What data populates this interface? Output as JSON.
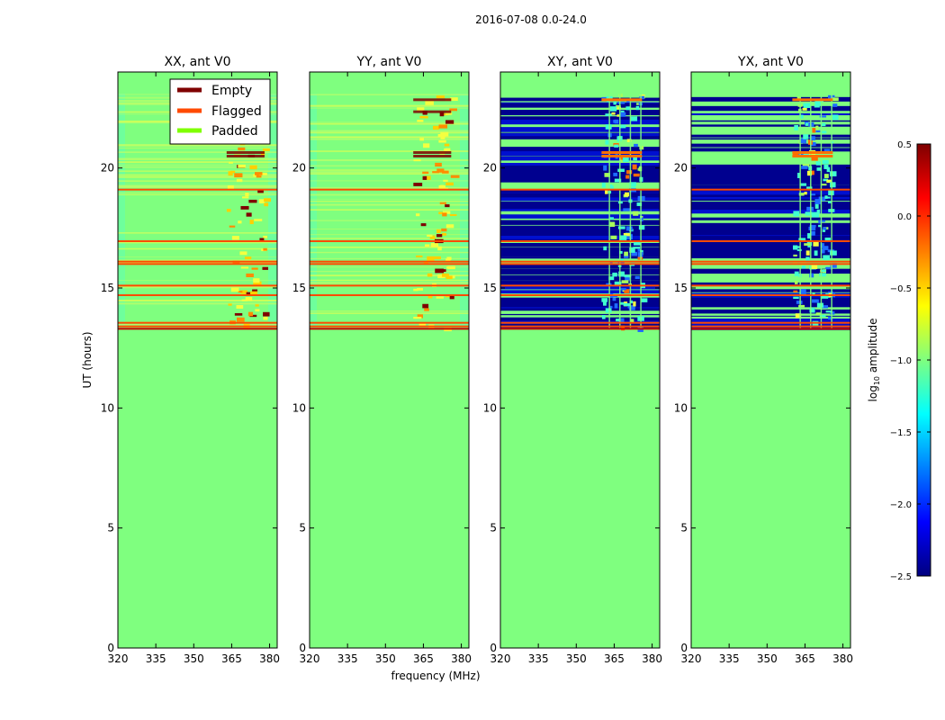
{
  "figure_title": "2016-07-08 0.0-24.0",
  "colors": {
    "padded": "#7fff7f",
    "flagged": "#ff4a00",
    "empty": "#7f0000",
    "xx_yy_texture": "#5dffa0",
    "cross_pol_dark": "#00008f",
    "cross_pol_mid": "#1e6cff",
    "cyan": "#40ffd0",
    "yellow": "#f4ff40"
  },
  "legend": {
    "entries": [
      {
        "label": "Empty",
        "color": "#7f0000"
      },
      {
        "label": "Flagged",
        "color": "#ff4a00"
      },
      {
        "label": "Padded",
        "color": "#7fff00"
      }
    ],
    "placement": "top-right of first panel"
  },
  "chart_data": [
    {
      "type": "heatmap",
      "title": "XX, ant V0",
      "xlabel": "",
      "ylabel": "UT (hours)",
      "x_ticks": [
        "320",
        "335",
        "350",
        "365",
        "380"
      ],
      "y_ticks": [
        "0",
        "5",
        "10",
        "15",
        "20"
      ],
      "xlim": [
        320,
        383
      ],
      "ylim": [
        0,
        24
      ],
      "data_start_hour": 13.3,
      "style": "parallel",
      "flag_lines_hours": [
        13.4,
        13.55,
        14.7,
        15.1,
        16.0,
        16.1,
        16.95,
        19.1
      ],
      "hot_band_mhz": [
        363,
        378
      ]
    },
    {
      "type": "heatmap",
      "title": "YY, ant V0",
      "xlabel": "frequency (MHz)",
      "ylabel": "",
      "x_ticks": [
        "320",
        "335",
        "350",
        "365",
        "380"
      ],
      "y_ticks": [
        "0",
        "5",
        "10",
        "15",
        "20"
      ],
      "xlim": [
        320,
        383
      ],
      "ylim": [
        0,
        24
      ],
      "data_start_hour": 13.3,
      "style": "parallel",
      "flag_lines_hours": [
        13.4,
        13.55,
        14.7,
        15.1,
        16.0,
        16.1,
        16.95,
        19.1
      ],
      "hot_band_mhz": [
        361,
        376
      ]
    },
    {
      "type": "heatmap",
      "title": "XY, ant V0",
      "xlabel": "",
      "ylabel": "",
      "x_ticks": [
        "320",
        "335",
        "350",
        "365",
        "380"
      ],
      "y_ticks": [
        "0",
        "5",
        "10",
        "15",
        "20"
      ],
      "xlim": [
        320,
        383
      ],
      "ylim": [
        0,
        24
      ],
      "data_start_hour": 13.3,
      "style": "cross",
      "flag_lines_hours": [
        13.4,
        13.55,
        14.7,
        15.1,
        16.0,
        16.1,
        16.95,
        19.1
      ],
      "hot_band_mhz": [
        360,
        376
      ]
    },
    {
      "type": "heatmap",
      "title": "YX, ant V0",
      "xlabel": "",
      "ylabel": "",
      "x_ticks": [
        "320",
        "335",
        "350",
        "365",
        "380"
      ],
      "y_ticks": [
        "0",
        "5",
        "10",
        "15",
        "20"
      ],
      "xlim": [
        320,
        383
      ],
      "ylim": [
        0,
        24
      ],
      "data_start_hour": 13.3,
      "style": "cross",
      "flag_lines_hours": [
        13.4,
        13.55,
        14.7,
        15.1,
        16.0,
        16.1,
        16.95,
        19.1
      ],
      "hot_band_mhz": [
        360,
        376
      ]
    }
  ],
  "colorbar": {
    "label": "log10 amplitude",
    "label_base": "log",
    "label_sub": "10",
    "label_rest": " amplitude",
    "ticks": [
      {
        "value": 0.5,
        "label": "0.5"
      },
      {
        "value": 0.0,
        "label": "0.0"
      },
      {
        "value": -0.5,
        "label": "−0.5"
      },
      {
        "value": -1.0,
        "label": "−1.0"
      },
      {
        "value": -1.5,
        "label": "−1.5"
      },
      {
        "value": -2.0,
        "label": "−2.0"
      },
      {
        "value": -2.5,
        "label": "−2.5"
      }
    ],
    "range": [
      -2.5,
      0.5
    ],
    "colormap": "jet"
  }
}
